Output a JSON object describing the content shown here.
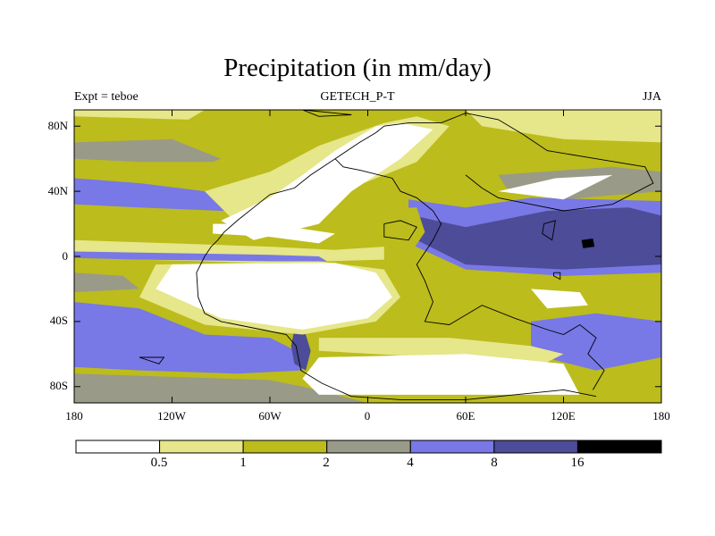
{
  "chart_data": {
    "type": "heatmap",
    "title": "Precipitation (in mm/day)",
    "subtitle_left": "Expt = teboe",
    "subtitle_center": "GETECH_P-T",
    "subtitle_right": "JJA",
    "x_ticks": [
      "180",
      "120W",
      "60W",
      "0",
      "60E",
      "120E",
      "180"
    ],
    "y_ticks": [
      "80N",
      "40N",
      "0",
      "40S",
      "80S"
    ],
    "xlim": [
      -180,
      180
    ],
    "ylim": [
      -90,
      90
    ],
    "colorbar": {
      "levels": [
        "0.5",
        "1",
        "2",
        "4",
        "8",
        "16"
      ],
      "colors": [
        "#ffffff",
        "#e6e68a",
        "#bcbc1c",
        "#9a9a88",
        "#7878e6",
        "#4c4c98",
        "#000000"
      ]
    }
  }
}
